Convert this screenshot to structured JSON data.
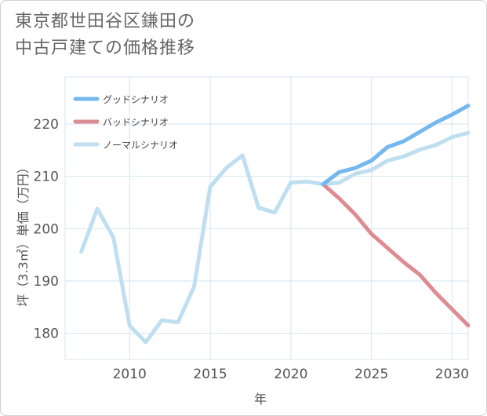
{
  "title": {
    "line1": "東京都世田谷区鎌田の",
    "line2": "中古戸建ての価格推移"
  },
  "chart_data": {
    "type": "line",
    "xlabel": "年",
    "ylabel": "坪（3.3㎡）単価（万円）",
    "xlim": [
      2006,
      2031
    ],
    "ylim": [
      175,
      229
    ],
    "x_ticks": [
      2010,
      2015,
      2020,
      2025,
      2030
    ],
    "y_ticks": [
      180,
      190,
      200,
      210,
      220
    ],
    "grid": true,
    "legend_position": "top-left",
    "series": [
      {
        "name": "グッドシナリオ",
        "color": "#74b8ef",
        "x": [
          2022,
          2023,
          2024,
          2025,
          2026,
          2027,
          2028,
          2029,
          2030,
          2031
        ],
        "values": [
          208.5,
          210.8,
          211.6,
          213.0,
          215.6,
          216.7,
          218.5,
          220.3,
          221.8,
          223.5
        ]
      },
      {
        "name": "バッドシナリオ",
        "color": "#de8c94",
        "x": [
          2022,
          2023,
          2024,
          2025,
          2026,
          2027,
          2028,
          2029,
          2030,
          2031
        ],
        "values": [
          208.5,
          205.8,
          202.7,
          199.0,
          196.3,
          193.6,
          191.2,
          187.7,
          184.6,
          181.5
        ]
      },
      {
        "name": "ノーマルシナリオ",
        "color": "#bfdff0",
        "x": [
          2007,
          2008,
          2009,
          2010,
          2011,
          2012,
          2013,
          2014,
          2015,
          2016,
          2017,
          2018,
          2019,
          2020,
          2021,
          2022,
          2023,
          2024,
          2025,
          2026,
          2027,
          2028,
          2029,
          2030,
          2031
        ],
        "values": [
          195.6,
          203.8,
          198.3,
          181.5,
          178.3,
          182.5,
          182.1,
          188.9,
          208.0,
          211.6,
          214.0,
          204.0,
          203.1,
          208.8,
          209.0,
          208.5,
          208.8,
          210.5,
          211.2,
          213.0,
          213.8,
          215.1,
          216.0,
          217.5,
          218.3
        ]
      }
    ]
  }
}
